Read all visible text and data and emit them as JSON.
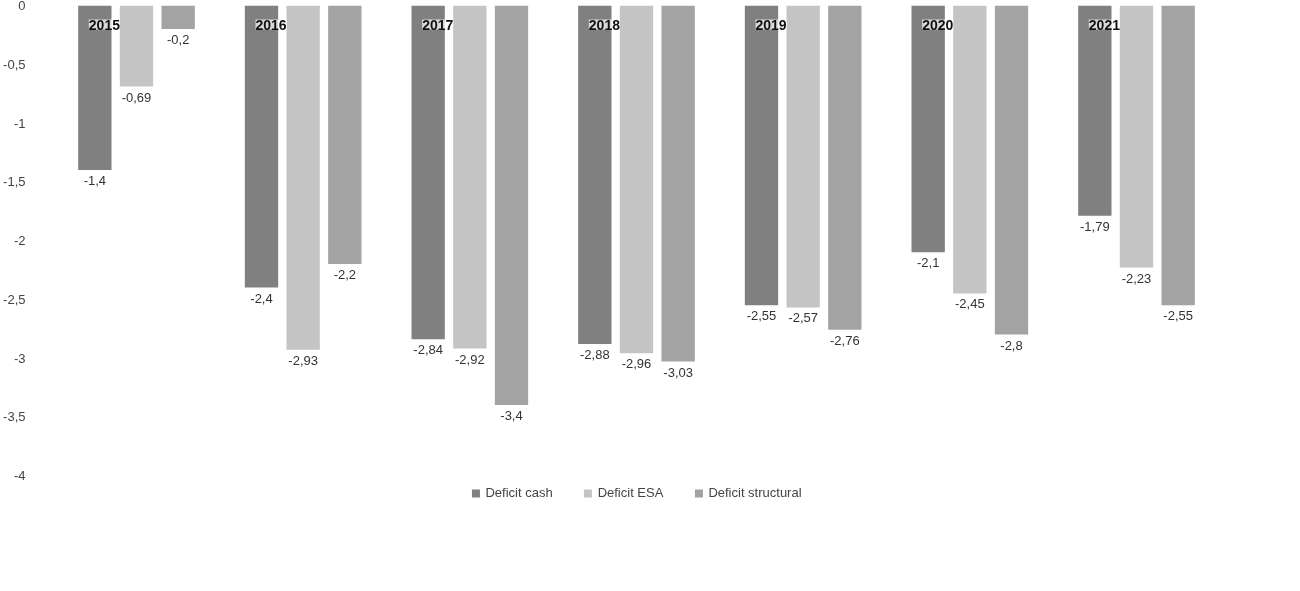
{
  "chart_data": {
    "type": "bar",
    "categories": [
      "2015",
      "2016",
      "2017",
      "2018",
      "2019",
      "2020",
      "2021"
    ],
    "series": [
      {
        "name": "Deficit cash",
        "color": "#808080",
        "values": [
          -1.4,
          -2.4,
          -2.84,
          -2.88,
          -2.55,
          -2.1,
          -1.79
        ],
        "value_labels": [
          "-1,4",
          "-2,4",
          "-2,84",
          "-2,88",
          "-2,55",
          "-2,1",
          "-1,79"
        ]
      },
      {
        "name": "Deficit ESA",
        "color": "#c4c4c4",
        "values": [
          -0.69,
          -2.93,
          -2.92,
          -2.96,
          -2.57,
          -2.45,
          -2.23
        ],
        "value_labels": [
          "-0,69",
          "-2,93",
          "-2,92",
          "-2,96",
          "-2,57",
          "-2,45",
          "-2,23"
        ]
      },
      {
        "name": "Deficit structural",
        "color": "#a3a3a3",
        "values": [
          -0.2,
          -2.2,
          -3.4,
          -3.03,
          -2.76,
          -2.8,
          -2.55
        ],
        "value_labels": [
          "-0,2",
          "-2,2",
          "-3,4",
          "-3,03",
          "-2,76",
          "-2,8",
          "-2,55"
        ]
      }
    ],
    "ylim": [
      -4,
      0
    ],
    "yticks": [
      {
        "value": 0,
        "label": "0"
      },
      {
        "value": -0.5,
        "label": "-0,5"
      },
      {
        "value": -1,
        "label": "-1"
      },
      {
        "value": -1.5,
        "label": "-1,5"
      },
      {
        "value": -2,
        "label": "-2"
      },
      {
        "value": -2.5,
        "label": "-2,5"
      },
      {
        "value": -3,
        "label": "-3"
      },
      {
        "value": -3.5,
        "label": "-3,5"
      },
      {
        "value": -4,
        "label": "-4"
      }
    ],
    "grid": false,
    "legend": "bottom"
  }
}
